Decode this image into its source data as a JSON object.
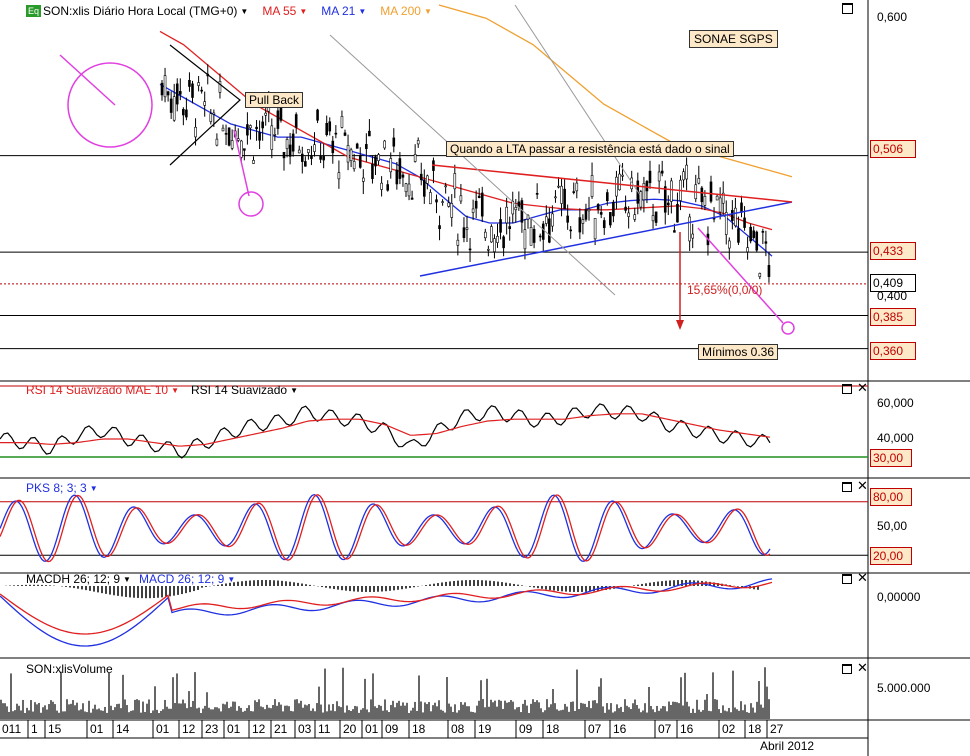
{
  "main_panel": {
    "title": "SON:xlis Diário Hora Local (TMG+0)",
    "icon_label": "Eq",
    "ma_labels": [
      {
        "text": "MA 55",
        "color": "#e02020"
      },
      {
        "text": "MA 21",
        "color": "#2030e0"
      },
      {
        "text": "MA 200",
        "color": "#f0a030"
      }
    ],
    "company_label": "SONAE SGPS",
    "annotations": {
      "pull_back": "Pull Back",
      "signal_note": "Quando a LTA passar a resistência está dado o sinal",
      "percent": "15,65%(0,0/0)",
      "minimos": "Mínimos 0.36"
    },
    "price_axis": [
      "0,600",
      "0,400"
    ],
    "price_levels": [
      {
        "value": "0,506",
        "color": "#c00000"
      },
      {
        "value": "0,433",
        "color": "#c00000"
      },
      {
        "value": "0,409",
        "color": "#000000"
      },
      {
        "value": "0,385",
        "color": "#c00000"
      },
      {
        "value": "0,360",
        "color": "#c00000"
      }
    ]
  },
  "rsi_panel": {
    "title_red": "RSI 14 Suavizado MAE 10",
    "title_black": "RSI 14 Suavizado",
    "axis": [
      "60,000",
      "40,000"
    ],
    "level": "30,00"
  },
  "pks_panel": {
    "title": "PKS 8; 3; 3",
    "axis": [
      "50,00"
    ],
    "levels": [
      "80,00",
      "20,00"
    ]
  },
  "macd_panel": {
    "title_black": "MACDH 26; 12; 9",
    "title_blue": "MACD 26; 12; 9",
    "axis": [
      "0,00000"
    ]
  },
  "volume_panel": {
    "title": "SON:xlisVolume",
    "axis": [
      "5.000.000"
    ]
  },
  "date_axis": {
    "day_labels": [
      "011",
      "1",
      "15",
      "01",
      "14",
      "01",
      "12",
      "23",
      "01",
      "12",
      "21",
      "03",
      "11",
      "20",
      "01",
      "09",
      "18",
      "08",
      "19",
      "09",
      "18",
      "07",
      "16",
      "07",
      "16",
      "02",
      "18",
      "27"
    ],
    "month_label": "Abril 2012"
  },
  "colors": {
    "ma55": "#e02020",
    "ma21": "#2030e0",
    "ma200": "#f0a030",
    "annotation_bg": "#fde8c8",
    "magenta": "#e040e0"
  },
  "chart_data": [
    {
      "type": "line",
      "title": "SON:xlis Diário Hora Local (TMG+0)",
      "series": [
        {
          "name": "MA 21",
          "values": [
            0.56,
            0.55,
            0.54,
            0.53,
            0.525,
            0.52,
            0.52,
            0.515,
            0.51,
            0.505,
            0.5,
            0.49,
            0.475,
            0.46,
            0.455,
            0.455,
            0.46,
            0.465,
            0.465,
            0.47,
            0.472,
            0.473,
            0.472,
            0.468,
            0.46,
            0.445,
            0.43
          ]
        },
        {
          "name": "MA 55",
          "values": [
            0.6,
            0.59,
            0.575,
            0.56,
            0.545,
            0.535,
            0.525,
            0.515,
            0.505,
            0.5,
            0.495,
            0.49,
            0.485,
            0.48,
            0.475,
            0.47,
            0.468,
            0.466,
            0.465,
            0.465,
            0.466,
            0.467,
            0.468,
            0.466,
            0.462,
            0.455,
            0.45
          ]
        },
        {
          "name": "MA 200",
          "values": [
            null,
            null,
            null,
            null,
            null,
            null,
            null,
            null,
            null,
            null,
            null,
            0.62,
            0.615,
            0.61,
            0.6,
            0.59,
            0.575,
            0.56,
            0.545,
            0.535,
            0.525,
            0.515,
            0.51,
            0.505,
            0.5,
            0.495,
            0.49
          ]
        }
      ],
      "price_levels": [
        0.506,
        0.433,
        0.409,
        0.385,
        0.36
      ],
      "ylim": [
        0.34,
        0.62
      ]
    },
    {
      "type": "line",
      "title": "RSI 14 Suavizado",
      "series": [
        {
          "name": "RSI 14 Suavizado",
          "values": [
            40,
            38,
            35,
            42,
            45,
            40,
            37,
            33,
            38,
            44,
            48,
            50,
            55,
            52,
            50,
            45,
            35,
            44,
            52,
            55,
            53,
            50,
            52,
            56,
            55,
            54,
            48,
            45,
            42,
            40,
            38
          ]
        },
        {
          "name": "RSI 14 Suavizado MAE 10",
          "values": [
            38,
            38,
            37,
            38,
            40,
            40,
            38,
            36,
            37,
            40,
            43,
            46,
            50,
            51,
            51,
            48,
            42,
            43,
            47,
            50,
            51,
            51,
            51,
            53,
            54,
            54,
            51,
            48,
            45,
            43,
            41
          ]
        }
      ],
      "ylim": [
        20,
        70
      ],
      "level": 30
    },
    {
      "type": "line",
      "title": "PKS 8; 3; 3",
      "ylim": [
        0,
        100
      ],
      "levels": [
        80,
        20
      ]
    },
    {
      "type": "bar",
      "title": "SON:xlisVolume"
    }
  ]
}
